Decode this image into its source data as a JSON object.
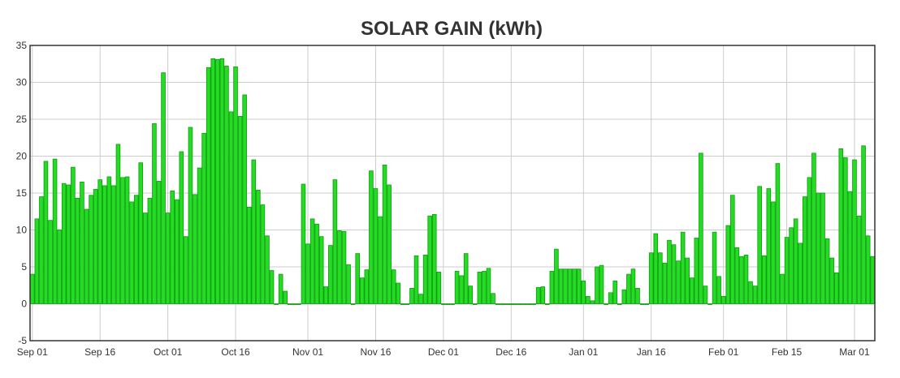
{
  "chart_data": {
    "type": "bar",
    "title": "SOLAR GAIN (kWh)",
    "xlabel": "",
    "ylabel": "",
    "ylim": [
      -5,
      35
    ],
    "y_ticks": [
      -5,
      0,
      5,
      10,
      15,
      20,
      25,
      30,
      35
    ],
    "grid": true,
    "start_date": "2023-09-01",
    "x_tick_labels": [
      {
        "label": "Sep 01",
        "day_index": 0
      },
      {
        "label": "Sep 16",
        "day_index": 15
      },
      {
        "label": "Oct 01",
        "day_index": 30
      },
      {
        "label": "Oct 16",
        "day_index": 45
      },
      {
        "label": "Nov 01",
        "day_index": 61
      },
      {
        "label": "Nov 16",
        "day_index": 76
      },
      {
        "label": "Dec 01",
        "day_index": 91
      },
      {
        "label": "Dec 16",
        "day_index": 106
      },
      {
        "label": "Jan 01",
        "day_index": 122
      },
      {
        "label": "Jan 16",
        "day_index": 137
      },
      {
        "label": "Feb 01",
        "day_index": 153
      },
      {
        "label": "Feb 15",
        "day_index": 167
      },
      {
        "label": "Mar 01",
        "day_index": 182
      }
    ],
    "series": [
      {
        "name": "Solar gain",
        "color": "#22dd22",
        "edge_color": "#119911",
        "values": [
          4.0,
          11.5,
          14.5,
          19.3,
          11.3,
          19.6,
          10.0,
          16.3,
          16.1,
          18.5,
          14.3,
          16.5,
          12.8,
          14.7,
          15.5,
          16.8,
          16.0,
          17.2,
          16.0,
          21.6,
          17.1,
          17.2,
          13.8,
          14.7,
          19.1,
          12.3,
          14.3,
          24.4,
          16.6,
          31.3,
          12.3,
          15.3,
          14.1,
          20.6,
          9.1,
          23.9,
          14.8,
          18.4,
          23.1,
          32.0,
          33.2,
          33.1,
          33.2,
          32.2,
          26.0,
          32.1,
          25.4,
          28.3,
          13.1,
          19.5,
          15.4,
          13.4,
          9.2,
          4.5,
          -0.1,
          4.0,
          1.7,
          0.0,
          -0.1,
          0.0,
          16.2,
          8.1,
          11.5,
          10.8,
          9.1,
          2.3,
          7.9,
          16.8,
          9.9,
          9.8,
          5.3,
          0.0,
          6.8,
          3.5,
          4.6,
          18.0,
          15.6,
          11.8,
          18.8,
          16.1,
          4.6,
          2.8,
          0.0,
          0.0,
          2.1,
          6.5,
          1.3,
          6.6,
          11.9,
          12.1,
          4.3,
          0.0,
          0.0,
          0.0,
          4.4,
          3.8,
          6.8,
          2.4,
          0.0,
          4.3,
          4.4,
          4.8,
          1.4,
          0.0,
          0.0,
          0.0,
          0.0,
          0.0,
          0.0,
          0.0,
          0.0,
          0.0,
          2.2,
          2.3,
          0.0,
          4.4,
          7.4,
          4.7,
          4.7,
          4.7,
          4.7,
          4.7,
          3.1,
          1.0,
          0.4,
          5.0,
          5.2,
          0.0,
          1.5,
          3.1,
          0.0,
          1.9,
          4.0,
          4.7,
          2.1,
          0.0,
          0.0,
          6.9,
          9.5,
          6.9,
          5.5,
          8.6,
          8.0,
          5.8,
          9.7,
          6.2,
          3.5,
          8.9,
          20.4,
          2.4,
          0.0,
          9.7,
          3.7,
          1.0,
          10.6,
          14.7,
          7.6,
          6.4,
          6.6,
          3.0,
          2.4,
          15.9,
          6.5,
          15.6,
          13.8,
          19.0,
          4.0,
          9.0,
          10.3,
          11.5,
          8.2,
          14.5,
          17.1,
          20.4,
          15.0,
          15.0,
          8.8,
          6.2,
          4.2,
          21.0,
          19.8,
          15.2,
          19.5,
          11.9,
          21.4,
          9.2,
          6.4
        ]
      }
    ]
  }
}
